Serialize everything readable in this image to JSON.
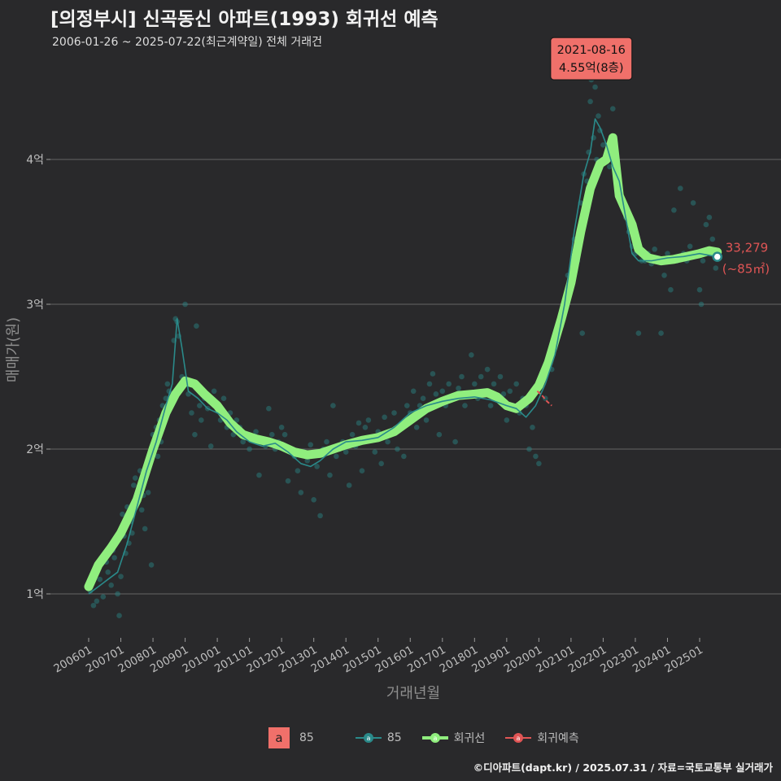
{
  "header": {
    "title": "[의정부시] 신곡동신 아파트(1993) 회귀선 예측",
    "subtitle": "2006-01-26 ~ 2025-07-22(최근계약일) 전체 거래건"
  },
  "footer": {
    "credit": "©디아파트(dapt.kr) / 2025.07.31 / 자료=국토교통부 실거래가"
  },
  "legend": {
    "area_key": "a",
    "area_label": "85",
    "series_85": "85",
    "regression": "회귀선",
    "forecast": "회귀예측"
  },
  "colors": {
    "background": "#29292b",
    "grid": "#5a5a5a",
    "teal": "#2a8a8a",
    "regression": "#90ee7e",
    "forecast": "#e05555",
    "callout": "#f0706a"
  },
  "chart_data": {
    "type": "line",
    "title": "[의정부시] 신곡동신 아파트(1993) 회귀선 예측",
    "xlabel": "거래년월",
    "ylabel": "매매가(원)",
    "xlim": [
      2006.0,
      2025.8
    ],
    "ylim": [
      0.6,
      4.8
    ],
    "y_unit": "억",
    "yticks": [
      1,
      2,
      3,
      4
    ],
    "ytick_labels": [
      "1억",
      "2억",
      "3억",
      "4억"
    ],
    "xticks": [
      2006,
      2007,
      2008,
      2009,
      2010,
      2011,
      2012,
      2013,
      2014,
      2015,
      2016,
      2017,
      2018,
      2019,
      2020,
      2021,
      2022,
      2023,
      2024,
      2025
    ],
    "xtick_labels": [
      "200601",
      "200701",
      "200801",
      "200901",
      "201001",
      "201101",
      "201201",
      "201301",
      "201401",
      "201501",
      "201601",
      "201701",
      "201801",
      "201901",
      "202001",
      "202101",
      "202201",
      "202301",
      "202401",
      "202501"
    ],
    "grid": true,
    "series": [
      {
        "name": "회귀선",
        "values": [
          [
            2006.0,
            1.05
          ],
          [
            2006.3,
            1.2
          ],
          [
            2006.7,
            1.32
          ],
          [
            2007.0,
            1.42
          ],
          [
            2007.5,
            1.65
          ],
          [
            2008.0,
            2.0
          ],
          [
            2008.4,
            2.25
          ],
          [
            2008.7,
            2.38
          ],
          [
            2009.0,
            2.47
          ],
          [
            2009.3,
            2.45
          ],
          [
            2009.6,
            2.38
          ],
          [
            2010.0,
            2.3
          ],
          [
            2010.4,
            2.18
          ],
          [
            2010.8,
            2.1
          ],
          [
            2011.2,
            2.07
          ],
          [
            2011.6,
            2.05
          ],
          [
            2012.0,
            2.02
          ],
          [
            2012.4,
            1.98
          ],
          [
            2012.8,
            1.96
          ],
          [
            2013.2,
            1.97
          ],
          [
            2013.6,
            2.0
          ],
          [
            2014.0,
            2.03
          ],
          [
            2014.5,
            2.06
          ],
          [
            2015.0,
            2.08
          ],
          [
            2015.5,
            2.12
          ],
          [
            2016.0,
            2.2
          ],
          [
            2016.5,
            2.28
          ],
          [
            2017.0,
            2.33
          ],
          [
            2017.5,
            2.37
          ],
          [
            2018.0,
            2.38
          ],
          [
            2018.4,
            2.39
          ],
          [
            2018.7,
            2.36
          ],
          [
            2019.0,
            2.3
          ],
          [
            2019.3,
            2.28
          ],
          [
            2019.7,
            2.35
          ],
          [
            2020.0,
            2.44
          ],
          [
            2020.3,
            2.6
          ],
          [
            2020.7,
            2.9
          ],
          [
            2021.0,
            3.15
          ],
          [
            2021.3,
            3.5
          ],
          [
            2021.6,
            3.8
          ],
          [
            2021.9,
            3.97
          ],
          [
            2022.1,
            4.0
          ],
          [
            2022.3,
            4.15
          ],
          [
            2022.5,
            3.75
          ],
          [
            2022.7,
            3.65
          ],
          [
            2022.9,
            3.55
          ],
          [
            2023.1,
            3.38
          ],
          [
            2023.4,
            3.32
          ],
          [
            2023.8,
            3.3
          ],
          [
            2024.2,
            3.31
          ],
          [
            2024.6,
            3.33
          ],
          [
            2025.0,
            3.35
          ],
          [
            2025.3,
            3.37
          ],
          [
            2025.55,
            3.36
          ]
        ]
      },
      {
        "name": "85",
        "values": [
          [
            2006.0,
            1.0
          ],
          [
            2006.3,
            1.05
          ],
          [
            2006.6,
            1.1
          ],
          [
            2006.9,
            1.15
          ],
          [
            2007.2,
            1.35
          ],
          [
            2007.5,
            1.6
          ],
          [
            2007.8,
            1.85
          ],
          [
            2008.1,
            2.05
          ],
          [
            2008.4,
            2.3
          ],
          [
            2008.6,
            2.45
          ],
          [
            2008.75,
            2.9
          ],
          [
            2008.9,
            2.7
          ],
          [
            2009.1,
            2.4
          ],
          [
            2009.4,
            2.35
          ],
          [
            2009.7,
            2.28
          ],
          [
            2010.0,
            2.25
          ],
          [
            2010.3,
            2.2
          ],
          [
            2010.6,
            2.12
          ],
          [
            2011.0,
            2.05
          ],
          [
            2011.4,
            2.02
          ],
          [
            2011.8,
            2.04
          ],
          [
            2012.2,
            1.98
          ],
          [
            2012.6,
            1.9
          ],
          [
            2012.9,
            1.88
          ],
          [
            2013.2,
            1.92
          ],
          [
            2013.6,
            2.0
          ],
          [
            2014.0,
            2.05
          ],
          [
            2014.5,
            2.06
          ],
          [
            2015.0,
            2.08
          ],
          [
            2015.5,
            2.15
          ],
          [
            2016.0,
            2.25
          ],
          [
            2016.5,
            2.3
          ],
          [
            2017.0,
            2.33
          ],
          [
            2017.5,
            2.35
          ],
          [
            2018.0,
            2.36
          ],
          [
            2018.5,
            2.34
          ],
          [
            2019.0,
            2.3
          ],
          [
            2019.3,
            2.28
          ],
          [
            2019.6,
            2.22
          ],
          [
            2019.9,
            2.3
          ],
          [
            2020.2,
            2.45
          ],
          [
            2020.5,
            2.65
          ],
          [
            2020.8,
            3.0
          ],
          [
            2021.1,
            3.5
          ],
          [
            2021.4,
            3.9
          ],
          [
            2021.6,
            4.05
          ],
          [
            2021.75,
            4.28
          ],
          [
            2021.9,
            4.22
          ],
          [
            2022.1,
            4.1
          ],
          [
            2022.3,
            3.95
          ],
          [
            2022.5,
            3.85
          ],
          [
            2022.7,
            3.6
          ],
          [
            2022.9,
            3.35
          ],
          [
            2023.1,
            3.3
          ],
          [
            2023.5,
            3.3
          ],
          [
            2024.0,
            3.32
          ],
          [
            2024.5,
            3.33
          ],
          [
            2025.0,
            3.35
          ],
          [
            2025.5,
            3.33
          ]
        ]
      },
      {
        "name": "회귀예측",
        "values": [
          [
            2019.95,
            2.4
          ],
          [
            2020.1,
            2.37
          ],
          [
            2020.25,
            2.33
          ],
          [
            2020.4,
            2.3
          ]
        ]
      }
    ],
    "callout": {
      "date": "2021-08-16",
      "price": "4.55억(8층)",
      "x": 2021.63,
      "y": 4.55
    },
    "end_label": {
      "value": "33,279",
      "area": "(~85㎡)",
      "x": 2025.55,
      "y": 3.3279
    },
    "transactions": [
      [
        2006.05,
        1.02
      ],
      [
        2006.15,
        0.92
      ],
      [
        2006.25,
        0.95
      ],
      [
        2006.35,
        1.1
      ],
      [
        2006.45,
        0.98
      ],
      [
        2006.55,
        1.22
      ],
      [
        2006.6,
        1.15
      ],
      [
        2006.7,
        1.06
      ],
      [
        2006.75,
        1.3
      ],
      [
        2006.8,
        1.25
      ],
      [
        2006.9,
        1.0
      ],
      [
        2006.95,
        0.85
      ],
      [
        2007.0,
        1.12
      ],
      [
        2007.05,
        1.55
      ],
      [
        2007.1,
        1.4
      ],
      [
        2007.15,
        1.28
      ],
      [
        2007.2,
        1.6
      ],
      [
        2007.25,
        1.35
      ],
      [
        2007.3,
        1.5
      ],
      [
        2007.35,
        1.42
      ],
      [
        2007.4,
        1.75
      ],
      [
        2007.45,
        1.8
      ],
      [
        2007.5,
        1.62
      ],
      [
        2007.55,
        1.72
      ],
      [
        2007.6,
        1.85
      ],
      [
        2007.65,
        1.58
      ],
      [
        2007.7,
        1.68
      ],
      [
        2007.75,
        1.45
      ],
      [
        2007.8,
        1.82
      ],
      [
        2007.85,
        1.7
      ],
      [
        2007.9,
        1.9
      ],
      [
        2007.95,
        1.2
      ],
      [
        2008.0,
        2.1
      ],
      [
        2008.05,
        2.0
      ],
      [
        2008.1,
        2.15
      ],
      [
        2008.15,
        1.95
      ],
      [
        2008.2,
        2.2
      ],
      [
        2008.25,
        2.05
      ],
      [
        2008.3,
        2.3
      ],
      [
        2008.35,
        2.25
      ],
      [
        2008.4,
        2.35
      ],
      [
        2008.45,
        2.45
      ],
      [
        2008.5,
        2.4
      ],
      [
        2008.55,
        2.32
      ],
      [
        2008.6,
        2.38
      ],
      [
        2008.65,
        2.75
      ],
      [
        2008.7,
        2.9
      ],
      [
        2008.75,
        2.88
      ],
      [
        2008.8,
        2.78
      ],
      [
        2008.9,
        2.5
      ],
      [
        2009.0,
        3.0
      ],
      [
        2009.05,
        2.45
      ],
      [
        2009.1,
        2.38
      ],
      [
        2009.2,
        2.25
      ],
      [
        2009.3,
        2.1
      ],
      [
        2009.35,
        2.85
      ],
      [
        2009.45,
        2.3
      ],
      [
        2009.5,
        2.2
      ],
      [
        2009.6,
        2.35
      ],
      [
        2009.7,
        2.28
      ],
      [
        2009.8,
        2.02
      ],
      [
        2009.9,
        2.4
      ],
      [
        2010.0,
        2.3
      ],
      [
        2010.1,
        2.2
      ],
      [
        2010.2,
        2.35
      ],
      [
        2010.3,
        2.15
      ],
      [
        2010.4,
        2.25
      ],
      [
        2010.5,
        2.1
      ],
      [
        2010.6,
        2.2
      ],
      [
        2010.7,
        2.15
      ],
      [
        2010.8,
        2.05
      ],
      [
        2010.9,
        2.1
      ],
      [
        2011.0,
        2.0
      ],
      [
        2011.1,
        2.08
      ],
      [
        2011.2,
        2.12
      ],
      [
        2011.3,
        1.82
      ],
      [
        2011.4,
        2.05
      ],
      [
        2011.5,
        2.02
      ],
      [
        2011.6,
        2.28
      ],
      [
        2011.7,
        2.1
      ],
      [
        2011.8,
        2.0
      ],
      [
        2011.9,
        2.05
      ],
      [
        2012.0,
        2.15
      ],
      [
        2012.1,
        2.1
      ],
      [
        2012.2,
        1.78
      ],
      [
        2012.3,
        2.0
      ],
      [
        2012.4,
        1.95
      ],
      [
        2012.5,
        1.85
      ],
      [
        2012.6,
        1.7
      ],
      [
        2012.7,
        1.98
      ],
      [
        2012.8,
        1.92
      ],
      [
        2012.9,
        2.03
      ],
      [
        2013.0,
        1.65
      ],
      [
        2013.1,
        1.88
      ],
      [
        2013.2,
        1.54
      ],
      [
        2013.3,
        2.0
      ],
      [
        2013.4,
        2.05
      ],
      [
        2013.5,
        1.82
      ],
      [
        2013.6,
        2.3
      ],
      [
        2013.7,
        1.95
      ],
      [
        2013.8,
        2.0
      ],
      [
        2013.9,
        2.05
      ],
      [
        2014.0,
        1.98
      ],
      [
        2014.1,
        1.75
      ],
      [
        2014.2,
        2.1
      ],
      [
        2014.3,
        2.02
      ],
      [
        2014.4,
        2.18
      ],
      [
        2014.5,
        1.85
      ],
      [
        2014.6,
        2.15
      ],
      [
        2014.7,
        2.2
      ],
      [
        2014.8,
        2.08
      ],
      [
        2014.9,
        1.98
      ],
      [
        2015.0,
        2.12
      ],
      [
        2015.1,
        1.9
      ],
      [
        2015.2,
        2.22
      ],
      [
        2015.3,
        2.05
      ],
      [
        2015.4,
        2.1
      ],
      [
        2015.5,
        2.25
      ],
      [
        2015.6,
        2.0
      ],
      [
        2015.7,
        2.15
      ],
      [
        2015.8,
        1.95
      ],
      [
        2015.9,
        2.3
      ],
      [
        2016.0,
        2.25
      ],
      [
        2016.1,
        2.4
      ],
      [
        2016.2,
        2.15
      ],
      [
        2016.3,
        2.3
      ],
      [
        2016.4,
        2.35
      ],
      [
        2016.5,
        2.2
      ],
      [
        2016.6,
        2.45
      ],
      [
        2016.7,
        2.52
      ],
      [
        2016.8,
        2.38
      ],
      [
        2016.9,
        2.1
      ],
      [
        2017.0,
        2.4
      ],
      [
        2017.1,
        2.3
      ],
      [
        2017.2,
        2.45
      ],
      [
        2017.3,
        2.35
      ],
      [
        2017.4,
        2.05
      ],
      [
        2017.5,
        2.42
      ],
      [
        2017.6,
        2.5
      ],
      [
        2017.7,
        2.3
      ],
      [
        2017.8,
        2.38
      ],
      [
        2017.9,
        2.65
      ],
      [
        2018.0,
        2.45
      ],
      [
        2018.1,
        2.35
      ],
      [
        2018.2,
        2.5
      ],
      [
        2018.3,
        2.4
      ],
      [
        2018.4,
        2.55
      ],
      [
        2018.5,
        2.3
      ],
      [
        2018.6,
        2.45
      ],
      [
        2018.7,
        2.35
      ],
      [
        2018.8,
        2.5
      ],
      [
        2018.9,
        2.38
      ],
      [
        2019.0,
        2.2
      ],
      [
        2019.1,
        2.4
      ],
      [
        2019.2,
        2.3
      ],
      [
        2019.3,
        2.45
      ],
      [
        2019.4,
        2.25
      ],
      [
        2019.5,
        2.35
      ],
      [
        2019.6,
        2.3
      ],
      [
        2019.7,
        2.0
      ],
      [
        2019.8,
        2.15
      ],
      [
        2019.9,
        1.95
      ],
      [
        2020.0,
        1.9
      ],
      [
        2020.1,
        2.5
      ],
      [
        2020.2,
        2.35
      ],
      [
        2020.3,
        2.6
      ],
      [
        2020.4,
        2.55
      ],
      [
        2020.5,
        2.7
      ],
      [
        2020.6,
        2.8
      ],
      [
        2020.7,
        2.85
      ],
      [
        2020.8,
        3.0
      ],
      [
        2020.9,
        3.2
      ],
      [
        2021.0,
        3.1
      ],
      [
        2021.1,
        3.45
      ],
      [
        2021.2,
        3.3
      ],
      [
        2021.3,
        3.7
      ],
      [
        2021.35,
        2.8
      ],
      [
        2021.4,
        3.9
      ],
      [
        2021.5,
        3.85
      ],
      [
        2021.55,
        4.05
      ],
      [
        2021.6,
        4.4
      ],
      [
        2021.63,
        4.55
      ],
      [
        2021.7,
        4.15
      ],
      [
        2021.75,
        4.5
      ],
      [
        2021.8,
        4.0
      ],
      [
        2021.85,
        4.3
      ],
      [
        2021.9,
        4.2
      ],
      [
        2022.0,
        4.1
      ],
      [
        2022.1,
        4.0
      ],
      [
        2022.2,
        3.95
      ],
      [
        2022.3,
        4.35
      ],
      [
        2022.4,
        3.9
      ],
      [
        2022.5,
        3.75
      ],
      [
        2022.6,
        3.7
      ],
      [
        2022.7,
        3.6
      ],
      [
        2022.8,
        3.5
      ],
      [
        2022.9,
        3.4
      ],
      [
        2023.0,
        3.35
      ],
      [
        2023.1,
        2.8
      ],
      [
        2023.2,
        3.3
      ],
      [
        2023.3,
        3.3
      ],
      [
        2023.4,
        3.35
      ],
      [
        2023.5,
        3.28
      ],
      [
        2023.6,
        3.38
      ],
      [
        2023.7,
        3.3
      ],
      [
        2023.8,
        2.8
      ],
      [
        2023.9,
        3.2
      ],
      [
        2024.0,
        3.35
      ],
      [
        2024.1,
        3.1
      ],
      [
        2024.2,
        3.65
      ],
      [
        2024.3,
        3.3
      ],
      [
        2024.4,
        3.8
      ],
      [
        2024.5,
        3.35
      ],
      [
        2024.6,
        3.3
      ],
      [
        2024.7,
        3.4
      ],
      [
        2024.8,
        3.7
      ],
      [
        2024.9,
        3.35
      ],
      [
        2025.0,
        3.1
      ],
      [
        2025.05,
        3.0
      ],
      [
        2025.1,
        3.3
      ],
      [
        2025.2,
        3.55
      ],
      [
        2025.3,
        3.6
      ],
      [
        2025.4,
        3.45
      ],
      [
        2025.5,
        3.25
      ],
      [
        2025.55,
        3.33
      ]
    ]
  }
}
